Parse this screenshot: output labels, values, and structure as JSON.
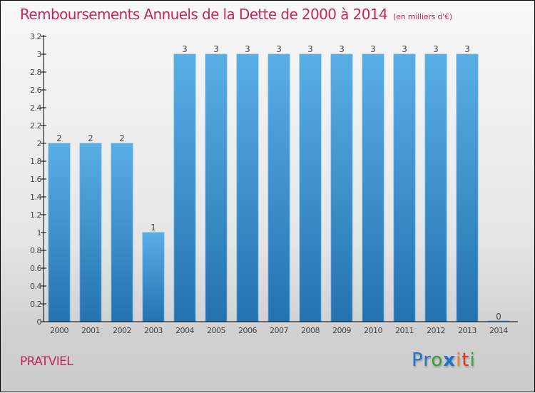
{
  "header": {
    "title": "Remboursements Annuels de la Dette de 2000 à 2014",
    "subtitle": "(en milliers d'€)"
  },
  "footer": {
    "city": "PRATVIEL",
    "logo": {
      "letters": [
        {
          "char": "P",
          "color": "#1f73c9"
        },
        {
          "char": "r",
          "color": "#1f73c9"
        },
        {
          "char": "o",
          "color": "#38a032"
        },
        {
          "char": "x",
          "color": "#1f73c9"
        },
        {
          "char": "i",
          "color": "#f08020"
        },
        {
          "char": "t",
          "color": "#e83020"
        },
        {
          "char": "i",
          "color": "#38a032"
        }
      ]
    }
  },
  "colors": {
    "title": "#c0285a",
    "bar_top": "#5aaee6",
    "bar_bottom": "#2472b0"
  },
  "chart_data": {
    "type": "bar",
    "title": "Remboursements Annuels de la Dette de 2000 à 2014 (en milliers d'€)",
    "xlabel": "",
    "ylabel": "",
    "categories": [
      "2000",
      "2001",
      "2002",
      "2003",
      "2004",
      "2005",
      "2006",
      "2007",
      "2008",
      "2009",
      "2010",
      "2011",
      "2012",
      "2013",
      "2014"
    ],
    "values": [
      2,
      2,
      2,
      1,
      3,
      3,
      3,
      3,
      3,
      3,
      3,
      3,
      3,
      3,
      0
    ],
    "value_labels": [
      "2",
      "2",
      "2",
      "1",
      "3",
      "3",
      "3",
      "3",
      "3",
      "3",
      "3",
      "3",
      "3",
      "3",
      "0"
    ],
    "ylim": [
      0,
      3.2
    ],
    "yticks": [
      0,
      0.2,
      0.4,
      0.6,
      0.8,
      1,
      1.2,
      1.4,
      1.6,
      1.8,
      2,
      2.2,
      2.4,
      2.6,
      2.8,
      3,
      3.2
    ],
    "ytick_labels": [
      "0",
      "0.2",
      "0.4",
      "0.6",
      "0.8",
      "1",
      "1.2",
      "1.4",
      "1.6",
      "1.8",
      "2",
      "2.2",
      "2.4",
      "2.6",
      "2.8",
      "3",
      "3.2"
    ],
    "grid": false,
    "legend": "none"
  }
}
